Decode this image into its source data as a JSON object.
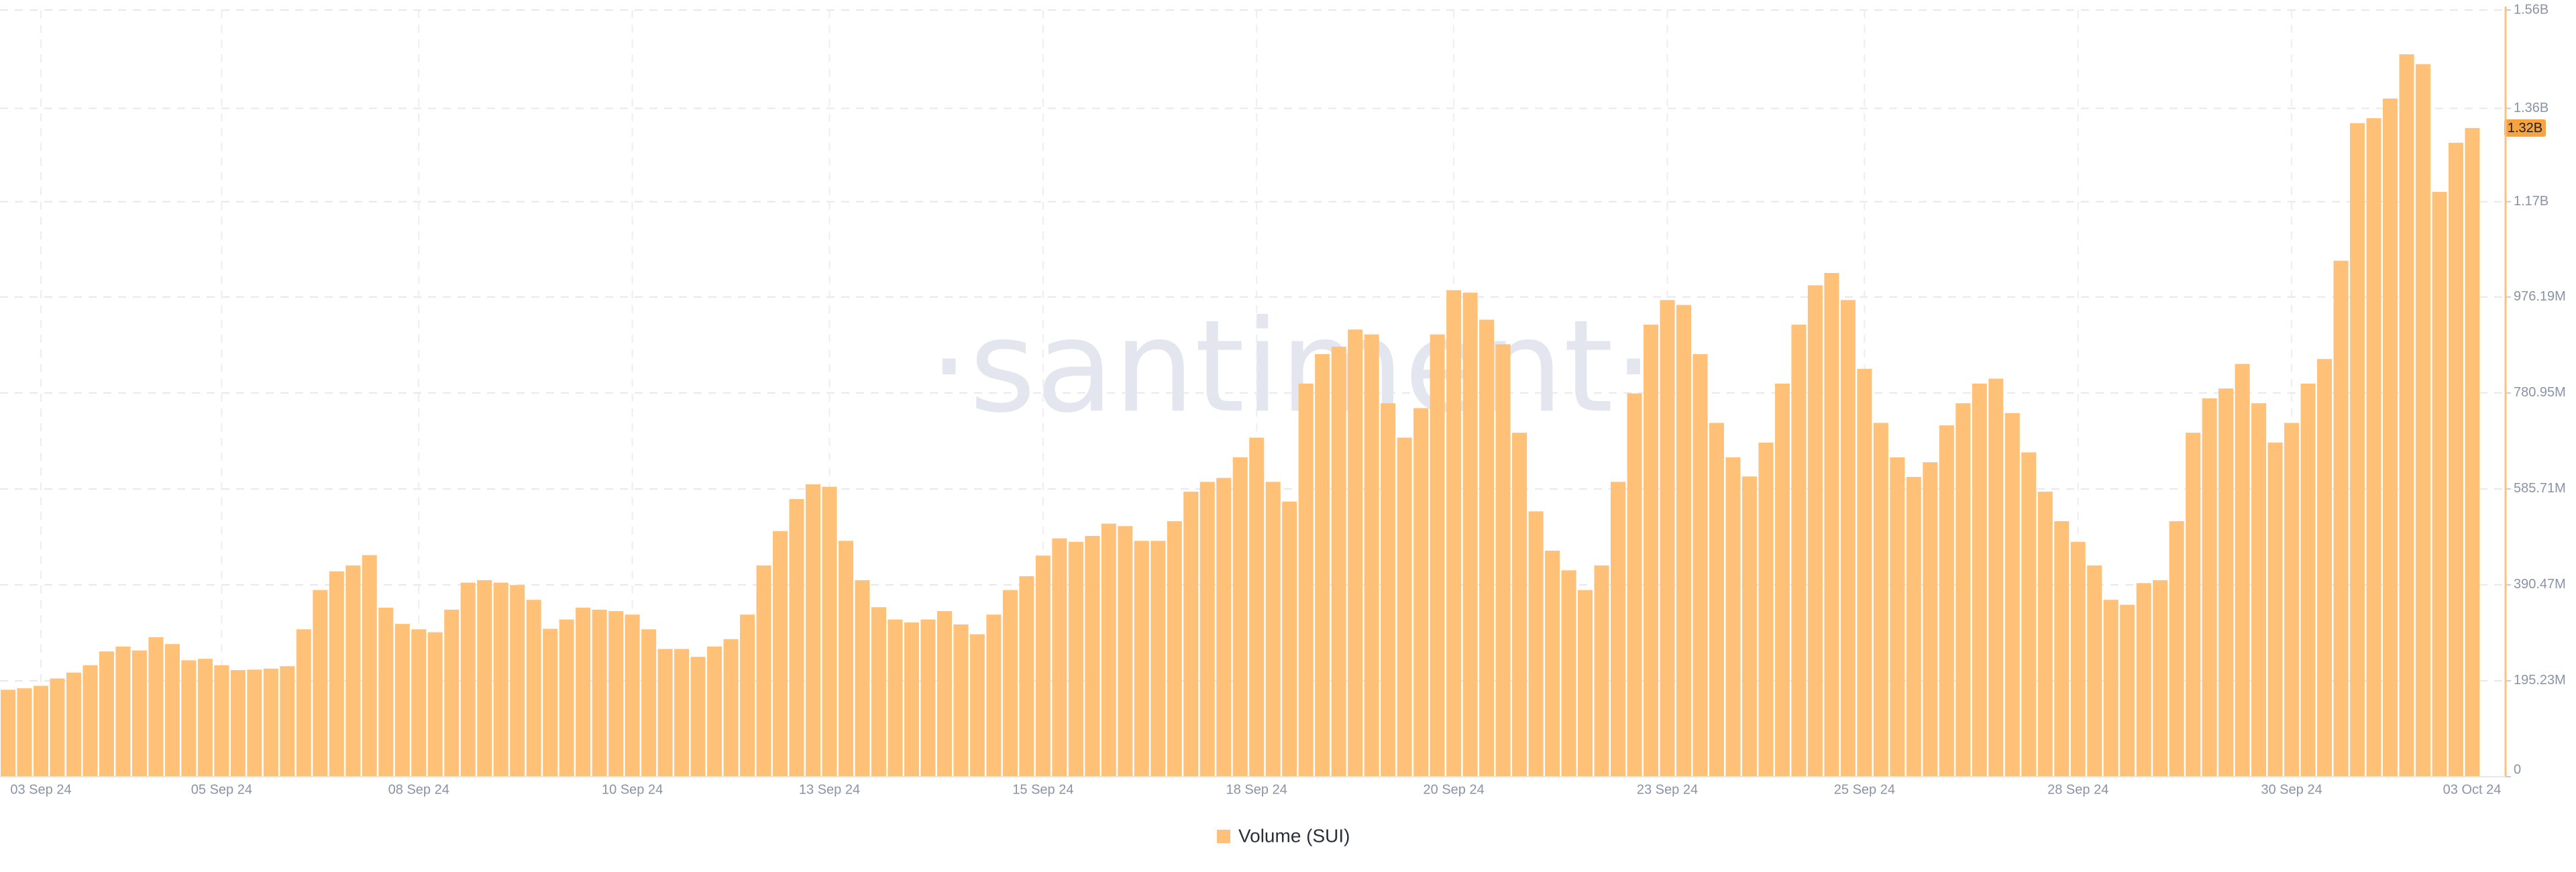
{
  "chart_data": {
    "type": "bar",
    "watermark": "·santiment·",
    "categories": [
      null,
      null,
      "03 Sep 24",
      null,
      null,
      null,
      null,
      null,
      null,
      null,
      null,
      null,
      null,
      "05 Sep 24",
      null,
      null,
      null,
      null,
      null,
      null,
      null,
      null,
      null,
      null,
      null,
      "08 Sep 24",
      null,
      null,
      null,
      null,
      null,
      null,
      null,
      null,
      null,
      null,
      null,
      null,
      "10 Sep 24",
      null,
      null,
      null,
      null,
      null,
      null,
      null,
      null,
      null,
      null,
      null,
      "13 Sep 24",
      null,
      null,
      null,
      null,
      null,
      null,
      null,
      null,
      null,
      null,
      null,
      null,
      "15 Sep 24",
      null,
      null,
      null,
      null,
      null,
      null,
      null,
      null,
      null,
      null,
      null,
      null,
      "18 Sep 24",
      null,
      null,
      null,
      null,
      null,
      null,
      null,
      null,
      null,
      null,
      null,
      "20 Sep 24",
      null,
      null,
      null,
      null,
      null,
      null,
      null,
      null,
      null,
      null,
      null,
      null,
      "23 Sep 24",
      null,
      null,
      null,
      null,
      null,
      null,
      null,
      null,
      null,
      null,
      null,
      "25 Sep 24",
      null,
      null,
      null,
      null,
      null,
      null,
      null,
      null,
      null,
      null,
      null,
      null,
      "28 Sep 24",
      null,
      null,
      null,
      null,
      null,
      null,
      null,
      null,
      null,
      null,
      null,
      null,
      "30 Sep 24",
      null,
      null,
      null,
      null,
      null,
      null,
      null,
      null,
      null,
      null,
      null,
      null,
      "03 Oct 24"
    ],
    "series": [
      {
        "name": "Volume (SUI)",
        "color": "#ffc178",
        "values": [
          177000000,
          180000000,
          185000000,
          200000000,
          212000000,
          227000000,
          255000000,
          265000000,
          257000000,
          284000000,
          270000000,
          237000000,
          240000000,
          227000000,
          217000000,
          218000000,
          220000000,
          225000000,
          300000000,
          380000000,
          418000000,
          430000000,
          451000000,
          344000000,
          311000000,
          300000000,
          294000000,
          340000000,
          395000000,
          400000000,
          395000000,
          390000000,
          360000000,
          301000000,
          320000000,
          344000000,
          340000000,
          337000000,
          330000000,
          300000000,
          260000000,
          260000000,
          244000000,
          265000000,
          280000000,
          330000000,
          430000000,
          500000000,
          565000000,
          595000000,
          590000000,
          480000000,
          400000000,
          345000000,
          320000000,
          314000000,
          320000000,
          337000000,
          310000000,
          290000000,
          330000000,
          380000000,
          408000000,
          450000000,
          485000000,
          478000000,
          490000000,
          515000000,
          510000000,
          480000000,
          480000000,
          520000000,
          580000000,
          600000000,
          608000000,
          650000000,
          690000000,
          600000000,
          560000000,
          800000000,
          860000000,
          875000000,
          910000000,
          900000000,
          760000000,
          690000000,
          750000000,
          900000000,
          990000000,
          985000000,
          930000000,
          880000000,
          700000000,
          540000000,
          460000000,
          420000000,
          380000000,
          430000000,
          600000000,
          780000000,
          920000000,
          970000000,
          960000000,
          860000000,
          720000000,
          650000000,
          611000000,
          680000000,
          800000000,
          920000000,
          1000000000,
          1025000000,
          970000000,
          830000000,
          720000000,
          650000000,
          610000000,
          640000000,
          715000000,
          760000000,
          800000000,
          810000000,
          740000000,
          660000000,
          580000000,
          520000000,
          478000000,
          430000000,
          360000000,
          350000000,
          394000000,
          400000000,
          520000000,
          700000000,
          770000000,
          790000000,
          840000000,
          760000000,
          680000000,
          720000000,
          800000000,
          850000000,
          1050000000,
          1330000000,
          1340000000,
          1380000000,
          1470000000,
          1450000000,
          1190000000,
          1290000000,
          1320000000,
          null,
          null
        ],
        "value_labels": [
          null,
          null,
          null,
          null,
          null,
          null,
          null,
          null,
          null,
          null,
          null,
          null,
          null,
          null,
          null,
          null,
          null,
          null,
          null,
          null,
          null,
          null,
          null,
          null,
          null,
          null,
          null,
          null,
          null,
          null,
          null,
          null,
          null,
          null,
          null,
          null,
          null,
          null,
          null,
          null,
          null,
          null,
          null,
          null,
          null,
          null,
          null,
          null,
          null,
          null,
          null,
          null,
          null,
          null,
          null,
          null,
          null,
          null,
          null,
          null,
          null,
          null,
          null,
          null,
          null,
          null,
          null,
          null,
          null,
          null,
          null,
          null,
          null,
          null,
          null,
          null,
          null,
          null,
          null,
          null,
          null,
          null,
          null,
          null,
          null,
          null,
          null,
          null,
          null,
          null,
          null,
          null,
          null,
          null,
          null,
          null,
          null,
          null,
          null,
          null,
          null,
          null,
          null,
          null,
          null,
          null,
          null,
          null,
          null,
          null,
          null,
          null,
          null,
          null,
          null,
          null,
          null,
          null,
          null,
          null,
          null,
          null,
          null,
          null,
          null,
          null,
          null,
          null,
          null,
          null,
          null,
          null,
          null,
          null,
          null,
          null,
          null,
          null,
          null,
          null,
          null,
          null,
          null,
          null,
          null,
          null,
          null,
          null,
          null,
          null,
          "1.32B",
          null,
          null
        ]
      }
    ],
    "ylim": [
      0,
      1560000000
    ],
    "yticks": [
      0,
      {
        "value": 195230000,
        "label": "195.23M"
      },
      {
        "value": 390470000,
        "label": "390.47M"
      },
      {
        "value": 585710000,
        "label": "585.71M"
      },
      {
        "value": 780950000,
        "label": "780.95M"
      },
      {
        "value": 976190000,
        "label": "976.19M"
      },
      {
        "value": 1170000000,
        "label": "1.17B"
      },
      {
        "value": 1360000000,
        "label": "1.36B"
      },
      {
        "value": 1560000000,
        "label": "1.56B"
      }
    ],
    "grid": true
  }
}
